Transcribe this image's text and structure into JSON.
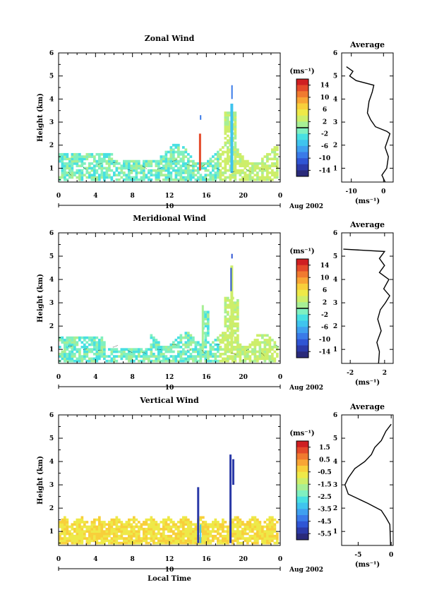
{
  "chart_data": [
    {
      "type": "heatmap",
      "title": "Zonal Wind",
      "ylabel": "Height (km)",
      "xlabel": "",
      "xlim": [
        0,
        24
      ],
      "ylim": [
        0.4,
        6
      ],
      "xticks": [
        "0",
        "4",
        "8",
        "12",
        "16",
        "20",
        "0"
      ],
      "yticks": [
        "1",
        "2",
        "3",
        "4",
        "5",
        "6"
      ],
      "date_label": "10",
      "date_suffix": "Aug 2002",
      "colorbar": {
        "unit": "(ms⁻¹)",
        "min": -16,
        "max": 16,
        "ticks": [
          "14",
          "10",
          "6",
          "2",
          "-2",
          "-6",
          "-10",
          "-14"
        ],
        "contour_at": 0
      },
      "profile": {
        "title": "Average",
        "xlabel": "(ms⁻¹)",
        "xlim": [
          -13,
          3
        ],
        "xticks": [
          "-10",
          "0"
        ],
        "xtick_values": [
          -10,
          0
        ],
        "points": [
          [
            0.5,
            0.4
          ],
          [
            -0.5,
            0.7
          ],
          [
            1.0,
            1.0
          ],
          [
            1.5,
            1.5
          ],
          [
            0.5,
            1.9
          ],
          [
            1.5,
            2.3
          ],
          [
            2.0,
            2.5
          ],
          [
            1.0,
            2.6
          ],
          [
            -2.5,
            2.8
          ],
          [
            -4.0,
            3.1
          ],
          [
            -5.0,
            3.4
          ],
          [
            -4.5,
            3.9
          ],
          [
            -3.5,
            4.3
          ],
          [
            -3.0,
            4.6
          ],
          [
            -8.5,
            4.8
          ],
          [
            -10.5,
            5.0
          ],
          [
            -9.5,
            5.2
          ],
          [
            -11.5,
            5.4
          ]
        ]
      }
    },
    {
      "type": "heatmap",
      "title": "Meridional Wind",
      "ylabel": "Height (km)",
      "xlabel": "",
      "xlim": [
        0,
        24
      ],
      "ylim": [
        0.4,
        6
      ],
      "xticks": [
        "0",
        "4",
        "8",
        "12",
        "16",
        "20",
        "0"
      ],
      "yticks": [
        "1",
        "2",
        "3",
        "4",
        "5",
        "6"
      ],
      "date_label": "10",
      "date_suffix": "Aug 2002",
      "colorbar": {
        "unit": "(ms⁻¹)",
        "min": -16,
        "max": 16,
        "ticks": [
          "14",
          "10",
          "6",
          "2",
          "-2",
          "-6",
          "-10",
          "-14"
        ],
        "contour_at": 0
      },
      "profile": {
        "title": "Average",
        "xlabel": "(ms⁻¹)",
        "xlim": [
          -3,
          3
        ],
        "xticks": [
          "-2",
          "2"
        ],
        "xtick_values": [
          -2,
          2
        ],
        "points": [
          [
            1.3,
            0.4
          ],
          [
            1.4,
            0.9
          ],
          [
            1.1,
            1.3
          ],
          [
            1.6,
            1.8
          ],
          [
            1.2,
            2.3
          ],
          [
            1.5,
            2.7
          ],
          [
            2.1,
            3.0
          ],
          [
            2.6,
            3.3
          ],
          [
            1.9,
            3.6
          ],
          [
            2.5,
            4.0
          ],
          [
            1.4,
            4.3
          ],
          [
            2.0,
            4.6
          ],
          [
            1.4,
            4.9
          ],
          [
            2.0,
            5.2
          ],
          [
            -2.8,
            5.3
          ]
        ]
      }
    },
    {
      "type": "heatmap",
      "title": "Vertical Wind",
      "ylabel": "Height (km)",
      "xlabel": "Local Time",
      "xlim": [
        0,
        24
      ],
      "ylim": [
        0.4,
        6
      ],
      "xticks": [
        "0",
        "4",
        "8",
        "12",
        "16",
        "20",
        "0"
      ],
      "yticks": [
        "1",
        "2",
        "3",
        "4",
        "5",
        "6"
      ],
      "date_label": "10",
      "date_suffix": "Aug 2002",
      "colorbar": {
        "unit": "(ms⁻¹)",
        "min": -6,
        "max": 2,
        "ticks": [
          "1.5",
          "0.5",
          "-0.5",
          "-1.5",
          "-2.5",
          "-3.5",
          "-4.5",
          "-5.5"
        ]
      },
      "profile": {
        "title": "Average",
        "xlabel": "(ms⁻¹)",
        "xlim": [
          -7.5,
          0.3
        ],
        "xticks": [
          "-5",
          "0"
        ],
        "xtick_values": [
          -5,
          0
        ],
        "points": [
          [
            -0.1,
            0.4
          ],
          [
            -0.2,
            1.3
          ],
          [
            -0.8,
            1.6
          ],
          [
            -1.5,
            1.9
          ],
          [
            -3.5,
            2.2
          ],
          [
            -6.5,
            2.6
          ],
          [
            -7.0,
            3.0
          ],
          [
            -6.5,
            3.3
          ],
          [
            -5.5,
            3.7
          ],
          [
            -4.0,
            4.0
          ],
          [
            -3.0,
            4.3
          ],
          [
            -2.5,
            4.6
          ],
          [
            -1.5,
            4.9
          ],
          [
            -0.8,
            5.3
          ],
          [
            0.0,
            5.6
          ]
        ]
      }
    }
  ]
}
